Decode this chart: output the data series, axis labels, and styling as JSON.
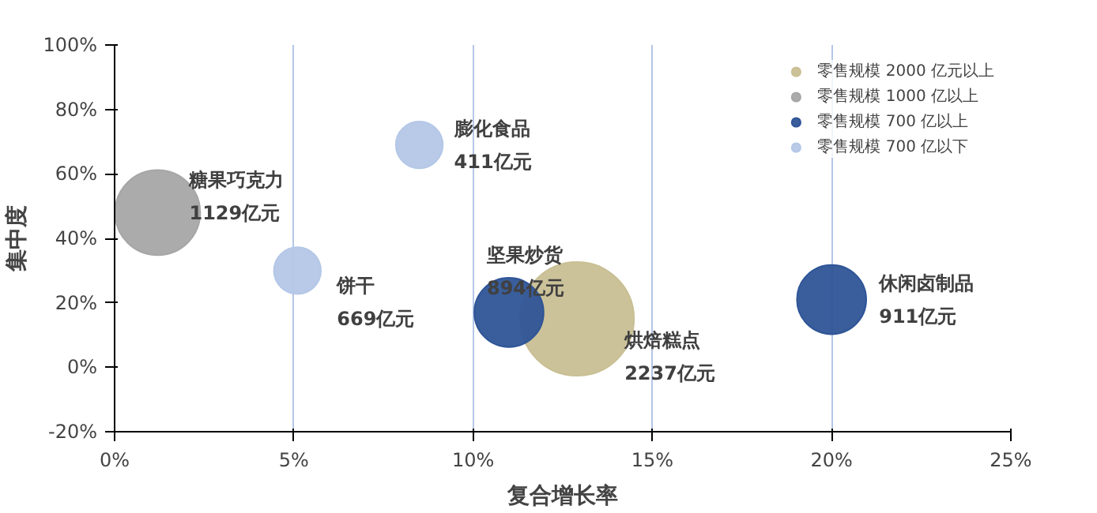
{
  "chart_data": {
    "type": "bubble",
    "xlabel": "复合增长率",
    "ylabel": "集中度",
    "xlim": [
      0,
      25
    ],
    "ylim": [
      -20,
      100
    ],
    "xticks": [
      {
        "value": 0,
        "label": "0%"
      },
      {
        "value": 5,
        "label": "5%"
      },
      {
        "value": 10,
        "label": "10%"
      },
      {
        "value": 15,
        "label": "15%"
      },
      {
        "value": 20,
        "label": "20%"
      },
      {
        "value": 25,
        "label": "25%"
      }
    ],
    "yticks": [
      {
        "value": -20,
        "label": "-20%"
      },
      {
        "value": 0,
        "label": "0%"
      },
      {
        "value": 20,
        "label": "20%"
      },
      {
        "value": 40,
        "label": "40%"
      },
      {
        "value": 60,
        "label": "60%"
      },
      {
        "value": 80,
        "label": "80%"
      },
      {
        "value": 100,
        "label": "100%"
      }
    ],
    "grid": "x",
    "legend": "top right",
    "series": [
      {
        "name": "零售规模 2000 亿元以上",
        "color": "#c9bf94",
        "x": [
          12.9
        ],
        "values": [
          15
        ],
        "sizes": [
          1
        ]
      },
      {
        "name": "零售规模 1000 亿以上",
        "color": "#a6a6a6",
        "x": [
          1.2
        ],
        "values": [
          48
        ],
        "sizes": [
          0.56
        ]
      },
      {
        "name": "零售规模 700 亿以上",
        "color": "#2f5597",
        "x": [
          11,
          20
        ],
        "values": [
          17,
          21
        ],
        "sizes": [
          0.37,
          0.37
        ]
      },
      {
        "name": "零售规模 700 亿以下",
        "color": "#b4c7e7",
        "x": [
          8.5,
          5.1
        ],
        "values": [
          69,
          30
        ],
        "sizes": [
          0.17,
          0.17
        ]
      }
    ],
    "annotations": [
      {
        "text": "糖果巧克力\n1129亿元",
        "x": 1.2,
        "y": 48
      },
      {
        "text": "膨化食品\n411亿元",
        "x": 8.5,
        "y": 69
      },
      {
        "text": "饼干\n669亿元",
        "x": 5.1,
        "y": 30
      },
      {
        "text": "坚果炒货\n894亿元",
        "x": 11,
        "y": 17
      },
      {
        "text": "烘焙糕点\n2237亿元",
        "x": 12.9,
        "y": 15
      },
      {
        "text": "休闲卤制品\n911亿元",
        "x": 20,
        "y": 21
      }
    ]
  }
}
